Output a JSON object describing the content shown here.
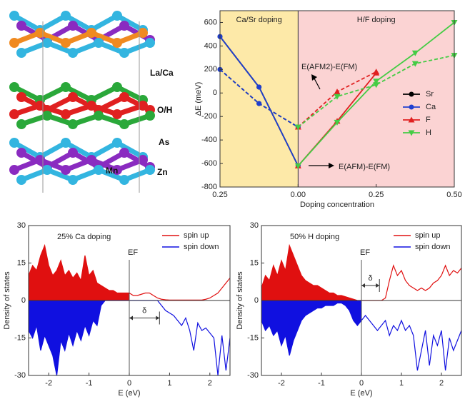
{
  "structure": {
    "labels": [
      "La/Ca",
      "O/H",
      "As",
      "Mn",
      "Zn"
    ]
  },
  "chart_data": [
    {
      "type": "line",
      "xlabel": "Doping concentration",
      "ylabel": "ΔE (meV)",
      "regions": [
        {
          "label": "Ca/Sr doping",
          "color": "#fde9a8",
          "from": -0.25,
          "to": 0
        },
        {
          "label": "H/F doping",
          "color": "#fbd3d3",
          "from": 0,
          "to": 0.5
        }
      ],
      "annotations": [
        "E(AFM2)-E(FM)",
        "E(AFM)-E(FM)"
      ],
      "x": [
        -0.25,
        -0.125,
        0,
        0.125,
        0.25,
        0.375,
        0.5
      ],
      "series": [
        {
          "name": "Sr",
          "color": "#000000",
          "marker": "circle",
          "values": [
            480,
            50,
            -620,
            null,
            null,
            null,
            null
          ],
          "values2": [
            200,
            -90,
            -290,
            null,
            null,
            null,
            null
          ]
        },
        {
          "name": "Ca",
          "color": "#1f3fd0",
          "marker": "circle",
          "values": [
            480,
            50,
            -620,
            null,
            null,
            null,
            null
          ],
          "values2": [
            200,
            -90,
            -290,
            null,
            null,
            null,
            null
          ]
        },
        {
          "name": "F",
          "color": "#e02020",
          "marker": "triangle",
          "values": [
            null,
            null,
            -620,
            -240,
            170,
            null,
            null
          ],
          "values2": [
            null,
            null,
            -290,
            10,
            180,
            null,
            null
          ]
        },
        {
          "name": "H",
          "color": "#44cc44",
          "marker": "triangle-down",
          "values": [
            null,
            null,
            -620,
            -250,
            100,
            340,
            600
          ],
          "values2": [
            null,
            null,
            -290,
            -30,
            70,
            250,
            320
          ]
        }
      ],
      "xlim": [
        -0.25,
        0.5
      ],
      "ylim": [
        -800,
        700
      ],
      "xticks": [
        {
          "value": -0.25,
          "label": "0.25"
        },
        {
          "value": 0,
          "label": "0.00"
        },
        {
          "value": 0.25,
          "label": "0.25"
        },
        {
          "value": 0.5,
          "label": "0.50"
        }
      ],
      "yticks": [
        -800,
        -600,
        -400,
        -200,
        0,
        200,
        400,
        600
      ],
      "legend": "right"
    },
    {
      "type": "dos",
      "title": "25% Ca doping",
      "xlabel": "E (eV)",
      "ylabel": "Density of states",
      "ef_label": "EF",
      "gap_label": "δ",
      "fermi": 0,
      "gap": [
        0,
        0.75
      ],
      "x": [
        -2.5,
        -2.4,
        -2.3,
        -2.2,
        -2.1,
        -2.0,
        -1.9,
        -1.8,
        -1.7,
        -1.6,
        -1.5,
        -1.4,
        -1.3,
        -1.2,
        -1.1,
        -1.0,
        -0.9,
        -0.8,
        -0.7,
        -0.6,
        -0.5,
        -0.4,
        -0.3,
        -0.2,
        -0.1,
        0,
        0.1,
        0.2,
        0.3,
        0.4,
        0.5,
        0.6,
        0.7,
        0.8,
        0.9,
        1.0,
        1.1,
        1.2,
        1.3,
        1.4,
        1.5,
        1.6,
        1.7,
        1.8,
        1.9,
        2.0,
        2.1,
        2.2,
        2.3,
        2.4,
        2.5
      ],
      "series": [
        {
          "name": "spin up",
          "color": "#e01010",
          "values": [
            10,
            14,
            12,
            18,
            22,
            14,
            10,
            12,
            16,
            10,
            12,
            9,
            11,
            8,
            18,
            10,
            12,
            7,
            6,
            5,
            4,
            4,
            3,
            3,
            3,
            3,
            2,
            2,
            2.5,
            3,
            3,
            2,
            1,
            0.5,
            0.3,
            0.2,
            0.2,
            0.2,
            0.2,
            0.2,
            0.2,
            0.2,
            0.2,
            0.2,
            0.5,
            1,
            2,
            3,
            5,
            7,
            9
          ]
        },
        {
          "name": "spin down",
          "color": "#1010e0",
          "values": [
            -12,
            -15,
            -10,
            -20,
            -14,
            -18,
            -22,
            -30,
            -16,
            -20,
            -13,
            -18,
            -12,
            -16,
            -10,
            -14,
            -8,
            -10,
            -2,
            0,
            0,
            0,
            0,
            0,
            0,
            0,
            0,
            0,
            0,
            0,
            0,
            0,
            0,
            -2,
            -4,
            -5,
            -6,
            -8,
            -10,
            -7,
            -12,
            -20,
            -9,
            -12,
            -11,
            -13,
            -15,
            -30,
            -14,
            -28,
            -15
          ]
        }
      ],
      "xlim": [
        -2.5,
        2.5
      ],
      "ylim": [
        -30,
        30
      ],
      "xticks": [
        -2,
        -1,
        0,
        1,
        2
      ],
      "yticks": [
        -30,
        -15,
        0,
        15,
        30
      ],
      "legend": "upper right"
    },
    {
      "type": "dos",
      "title": "50% H doping",
      "xlabel": "E (eV)",
      "ylabel": "Density of states",
      "ef_label": "EF",
      "gap_label": "δ",
      "fermi": 0,
      "gap": [
        0,
        0.45
      ],
      "x": [
        -2.5,
        -2.4,
        -2.3,
        -2.2,
        -2.1,
        -2.0,
        -1.9,
        -1.8,
        -1.7,
        -1.6,
        -1.5,
        -1.4,
        -1.3,
        -1.2,
        -1.1,
        -1.0,
        -0.9,
        -0.8,
        -0.7,
        -0.6,
        -0.5,
        -0.4,
        -0.3,
        -0.2,
        -0.1,
        0,
        0.1,
        0.2,
        0.3,
        0.4,
        0.5,
        0.6,
        0.7,
        0.8,
        0.9,
        1.0,
        1.1,
        1.2,
        1.3,
        1.4,
        1.5,
        1.6,
        1.7,
        1.8,
        1.9,
        2.0,
        2.1,
        2.2,
        2.3,
        2.4,
        2.5
      ],
      "series": [
        {
          "name": "spin up",
          "color": "#e01010",
          "values": [
            5,
            10,
            8,
            14,
            10,
            16,
            12,
            22,
            18,
            14,
            10,
            8,
            7,
            6,
            6,
            5,
            4,
            3,
            3,
            2,
            2,
            1.5,
            1,
            0.5,
            0,
            0,
            0,
            0,
            0,
            0,
            0,
            1,
            8,
            14,
            10,
            12,
            8,
            6,
            5,
            4,
            5,
            4,
            5,
            7,
            8,
            10,
            14,
            10,
            12,
            11,
            13
          ]
        },
        {
          "name": "spin down",
          "color": "#1010e0",
          "values": [
            -8,
            -12,
            -10,
            -14,
            -12,
            -18,
            -14,
            -22,
            -16,
            -12,
            -8,
            -6,
            -5,
            -4,
            -3,
            -3,
            -2,
            -2,
            -2,
            -1,
            -1,
            -2,
            -4,
            -8,
            -10,
            -8,
            -6,
            -8,
            -10,
            -12,
            -10,
            -8,
            -14,
            -10,
            -12,
            -8,
            -12,
            -10,
            -14,
            -28,
            -20,
            -12,
            -26,
            -14,
            -18,
            -12,
            -28,
            -15,
            -20,
            -16,
            -12
          ]
        }
      ],
      "xlim": [
        -2.5,
        2.5
      ],
      "ylim": [
        -30,
        30
      ],
      "xticks": [
        -2,
        -1,
        0,
        1,
        2
      ],
      "yticks": [
        -30,
        -15,
        0,
        15,
        30
      ],
      "legend": "upper right"
    }
  ]
}
